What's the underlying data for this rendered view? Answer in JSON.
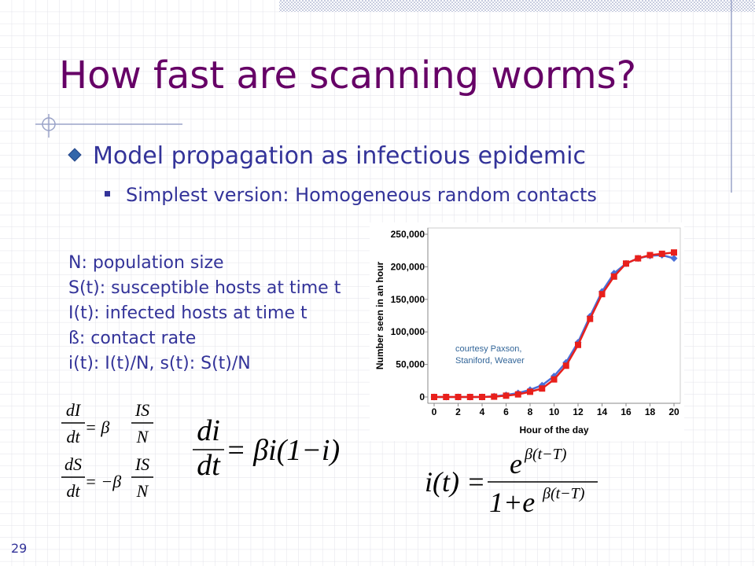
{
  "slide": {
    "title": "How fast are scanning worms?",
    "bullet": "Model propagation as infectious epidemic",
    "sub_bullet": "Simplest version: Homogeneous random contacts",
    "definitions": [
      "N: population size",
      "S(t): susceptible hosts at time t",
      "I(t): infected hosts at time t",
      "ß: contact rate",
      "i(t): I(t)/N, s(t): S(t)/N"
    ],
    "equations": {
      "dI": {
        "lhs_num": "dI",
        "lhs_den": "dt",
        "op": "= β",
        "rhs_num": "IS",
        "rhs_den": "N"
      },
      "dS": {
        "lhs_num": "dS",
        "lhs_den": "dt",
        "op": "= −β",
        "rhs_num": "IS",
        "rhs_den": "N"
      },
      "di": {
        "lhs_num": "di",
        "lhs_den": "dt",
        "rhs": "= βi(1−i)"
      },
      "solution": {
        "lhs": "i(t) =",
        "num_base": "e",
        "num_exp": "β(t−T)",
        "den_base": "1+e",
        "den_exp": "β(t−T)"
      }
    },
    "page_number": "29"
  },
  "chart_data": {
    "type": "line",
    "x_label": "Hour of the day",
    "y_label": "Number seen in an hour",
    "annotation": [
      "courtesy Paxson,",
      "Staniford, Weaver"
    ],
    "x": [
      0,
      1,
      2,
      3,
      4,
      5,
      6,
      7,
      8,
      9,
      10,
      11,
      12,
      13,
      14,
      15,
      16,
      17,
      18,
      19,
      20
    ],
    "series": [
      {
        "color": "#4a6fd8",
        "marker": "diamond",
        "values": [
          0,
          0,
          0,
          0,
          0,
          1000,
          3000,
          6000,
          11000,
          18000,
          32000,
          53000,
          84000,
          124000,
          162000,
          190000,
          205000,
          213000,
          217000,
          218000,
          213000
        ]
      },
      {
        "color": "#e8201c",
        "marker": "square",
        "values": [
          0,
          0,
          0,
          0,
          0,
          500,
          2000,
          4000,
          8000,
          13000,
          27000,
          48000,
          80000,
          120000,
          158000,
          185000,
          205000,
          213000,
          218000,
          220000,
          222000
        ]
      }
    ],
    "xlim": [
      0,
      20
    ],
    "xticks": [
      0,
      2,
      4,
      6,
      8,
      10,
      12,
      14,
      16,
      18,
      20
    ],
    "ylim": [
      0,
      250000
    ],
    "yticks": [
      0,
      {
        "value": 50000,
        "label": "50,000"
      },
      {
        "value": 100000,
        "label": "100,000"
      },
      {
        "value": 150000,
        "label": "150,000"
      },
      {
        "value": 200000,
        "label": "200,000"
      },
      {
        "value": 250000,
        "label": "250,000"
      }
    ],
    "grid": false
  }
}
